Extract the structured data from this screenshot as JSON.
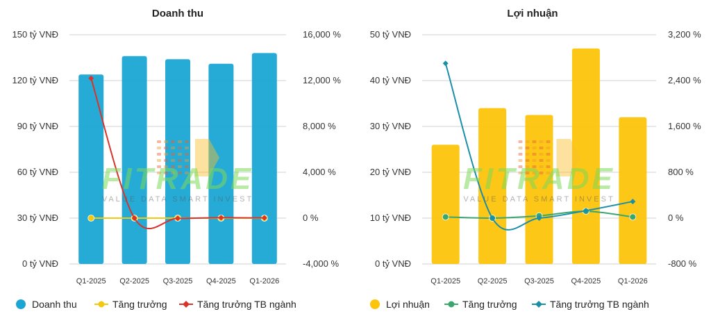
{
  "chart_data": [
    {
      "type": "bar",
      "title": "Doanh thu",
      "categories": [
        "Q1-2025",
        "Q2-2025",
        "Q3-2025",
        "Q4-2025",
        "Q1-2026"
      ],
      "left_axis": {
        "min": 0,
        "max": 150,
        "ticks": [
          0,
          30,
          60,
          90,
          120,
          150
        ],
        "tick_labels": [
          "0 tỷ VNĐ",
          "30 tỷ VNĐ",
          "60 tỷ VNĐ",
          "90 tỷ VNĐ",
          "120 tỷ VNĐ",
          "150 tỷ VNĐ"
        ]
      },
      "right_axis": {
        "min": -4000,
        "max": 16000,
        "ticks": [
          -4000,
          0,
          4000,
          8000,
          12000,
          16000
        ],
        "tick_labels": [
          "-4,000 %",
          "0 %",
          "4,000 %",
          "8,000 %",
          "12,000 %",
          "16,000 %"
        ]
      },
      "series": [
        {
          "name": "Doanh thu",
          "kind": "bar",
          "axis": "left",
          "color": "#1aa6d4",
          "values": [
            124,
            136,
            134,
            131,
            138
          ]
        },
        {
          "name": "Tăng trưởng",
          "kind": "line",
          "axis": "right",
          "color": "#f2c811",
          "marker": "circle",
          "values": [
            0,
            0,
            0,
            0,
            0
          ]
        },
        {
          "name": "Tăng trưởng TB ngành",
          "kind": "line",
          "axis": "right",
          "color": "#d8342b",
          "marker": "diamond",
          "values": [
            12200,
            0,
            -20,
            40,
            20
          ]
        }
      ],
      "legend": "bottom",
      "grid": true
    },
    {
      "type": "bar",
      "title": "Lợi nhuận",
      "categories": [
        "Q1-2025",
        "Q2-2025",
        "Q3-2025",
        "Q4-2025",
        "Q1-2026"
      ],
      "left_axis": {
        "min": 0,
        "max": 50,
        "ticks": [
          0,
          10,
          20,
          30,
          40,
          50
        ],
        "tick_labels": [
          "0 tỷ VNĐ",
          "10 tỷ VNĐ",
          "20 tỷ VNĐ",
          "30 tỷ VNĐ",
          "40 tỷ VNĐ",
          "50 tỷ VNĐ"
        ]
      },
      "right_axis": {
        "min": -800,
        "max": 3200,
        "ticks": [
          -800,
          0,
          800,
          1600,
          2400,
          3200
        ],
        "tick_labels": [
          "-800 %",
          "0 %",
          "800 %",
          "1,600 %",
          "2,400 %",
          "3,200 %"
        ]
      },
      "series": [
        {
          "name": "Lợi nhuận",
          "kind": "bar",
          "axis": "left",
          "color": "#fcc40a",
          "values": [
            26,
            34,
            32.5,
            47,
            32
          ]
        },
        {
          "name": "Tăng trưởng",
          "kind": "line",
          "axis": "right",
          "color": "#3aa66e",
          "marker": "circle",
          "values": [
            20,
            0,
            40,
            120,
            20
          ]
        },
        {
          "name": "Tăng trưởng TB ngành",
          "kind": "line",
          "axis": "right",
          "color": "#1a8fa8",
          "marker": "diamond",
          "values": [
            2700,
            0,
            0,
            130,
            290
          ]
        }
      ],
      "legend": "bottom",
      "grid": true
    }
  ],
  "watermark": {
    "text": "FITRADE",
    "sub": "VALUE DATA SMART INVEST"
  }
}
